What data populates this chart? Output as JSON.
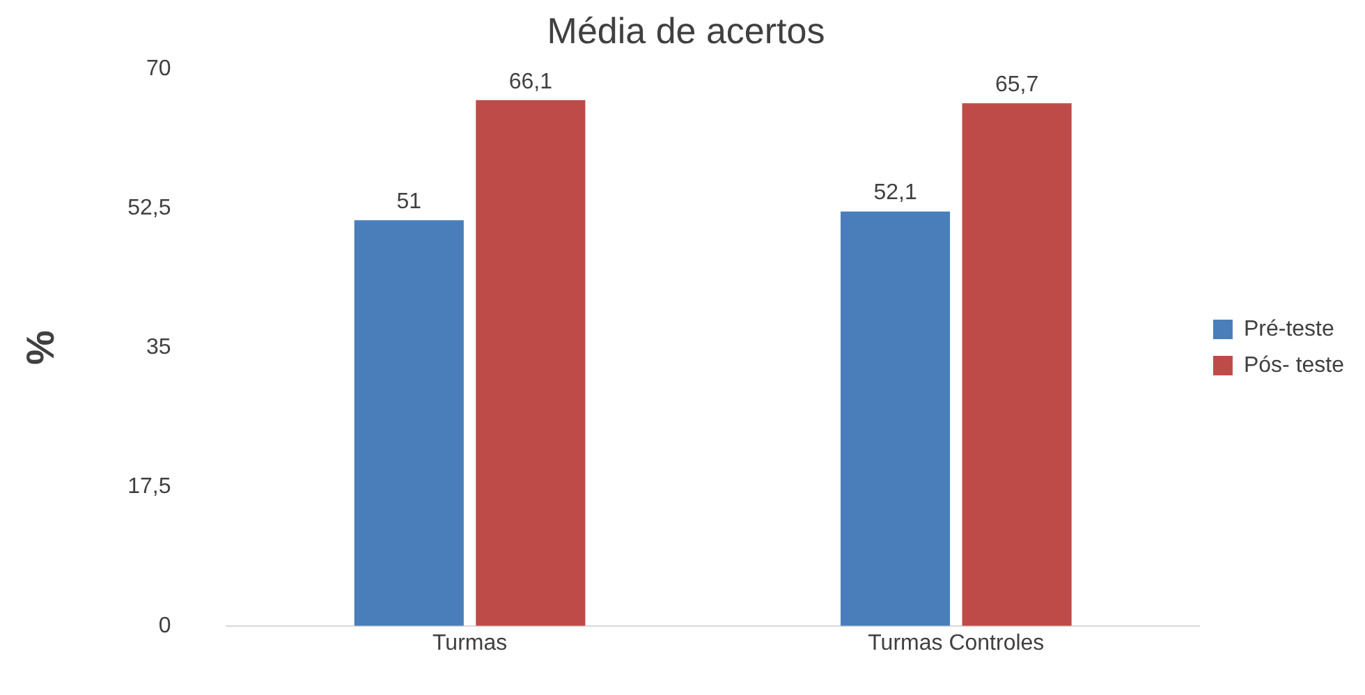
{
  "chart_data": {
    "type": "bar",
    "title": "Média de acertos",
    "ylabel": "%",
    "categories": [
      "Turmas",
      "Turmas Controles"
    ],
    "series": [
      {
        "name": "Pré-teste",
        "color": "#4a7ebb",
        "values": [
          51,
          52.1
        ],
        "value_labels": [
          "51",
          "52,1"
        ]
      },
      {
        "name": "Pós- teste",
        "color": "#be4b48",
        "values": [
          66.1,
          65.7
        ],
        "value_labels": [
          "66,1",
          "65,7"
        ]
      }
    ],
    "ylim": [
      0,
      70
    ],
    "yticks": [
      0,
      {
        "value": 17.5,
        "label": "17,5"
      },
      35,
      {
        "value": 52.5,
        "label": "52,5"
      },
      70
    ],
    "grid": false,
    "legend": "right"
  }
}
